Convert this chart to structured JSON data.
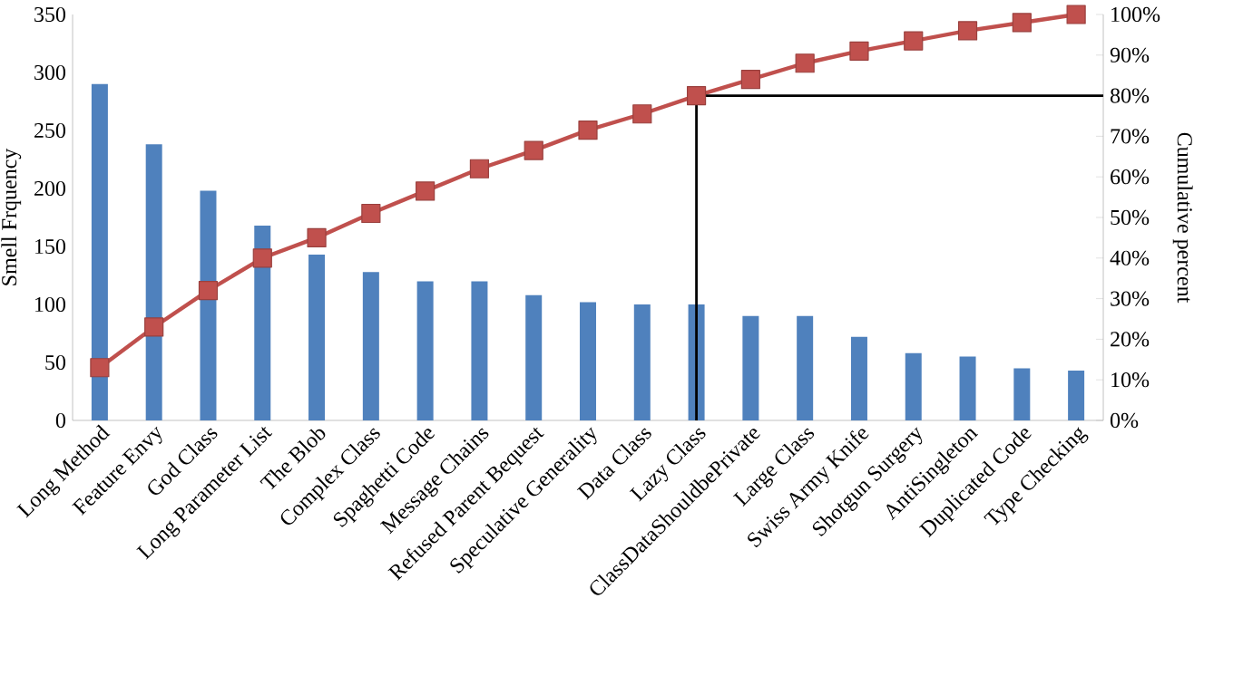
{
  "chart_data": {
    "type": "bar",
    "ylabel": "Smell Frquency",
    "y2label": "Cumulative percent",
    "categories": [
      "Long Method",
      "Feature Envy",
      "God Class",
      "Long Parameter List",
      "The Blob",
      "Complex Class",
      "Spaghetti Code",
      "Message Chains",
      "Refused Parent Bequest",
      "Speculative Generality",
      "Data Class",
      "Lazy Class",
      "ClassDataShouldbePrivate",
      "Large Class",
      "Swiss Army Knife",
      "Shotgun Surgery",
      "AntiSingleton",
      "Duplicated Code",
      "Type Checking"
    ],
    "series": [
      {
        "color": "#4f81bd",
        "values": [
          290,
          238,
          198,
          168,
          143,
          128,
          120,
          120,
          108,
          102,
          100,
          100,
          90,
          90,
          72,
          58,
          55,
          45,
          43
        ]
      },
      {
        "type": "line",
        "axis": "y2",
        "color": "#c0504d",
        "marker": "square",
        "line_style": "solid",
        "values": [
          13,
          23,
          32,
          40,
          45,
          51,
          56.5,
          62,
          66.5,
          71.5,
          75.5,
          80,
          84,
          88,
          91,
          93.5,
          96,
          98,
          100
        ]
      }
    ],
    "ylim": [
      0,
      350
    ],
    "yticks": [
      0,
      50,
      100,
      150,
      200,
      250,
      300,
      350
    ],
    "y2lim": [
      0,
      100
    ],
    "y2ticks": [
      {
        "value": 0,
        "label": "0%"
      },
      {
        "value": 10,
        "label": "10%"
      },
      {
        "value": 20,
        "label": "20%"
      },
      {
        "value": 30,
        "label": "30%"
      },
      {
        "value": 40,
        "label": "40%"
      },
      {
        "value": 50,
        "label": "50%"
      },
      {
        "value": 60,
        "label": "60%"
      },
      {
        "value": 70,
        "label": "70%"
      },
      {
        "value": 80,
        "label": "80%"
      },
      {
        "value": 90,
        "label": "90%"
      },
      {
        "value": 100,
        "label": "100%"
      }
    ],
    "ref_lines": [
      {
        "axis": "x",
        "value": "Lazy Class",
        "color": "#000000"
      },
      {
        "axis": "y2",
        "value": 80,
        "color": "#000000"
      }
    ],
    "grid": false
  }
}
